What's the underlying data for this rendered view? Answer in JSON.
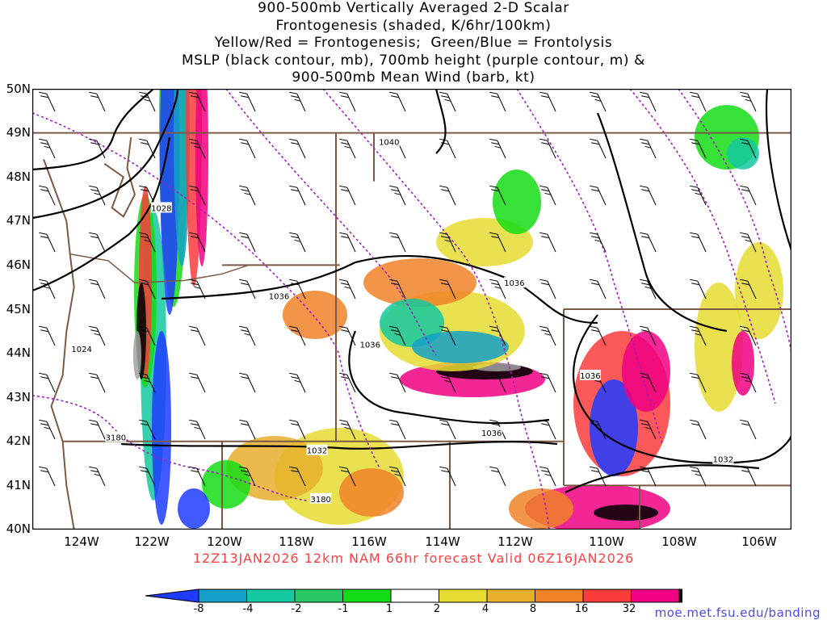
{
  "title": {
    "lines": [
      "900-500mb Vertically Averaged 2-D Scalar",
      "Frontogenesis (shaded, K/6hr/100km)",
      "Yellow/Red = Frontogenesis;  Green/Blue = Frontolysis",
      "MSLP (black contour, mb), 700mb height (purple contour, m) &",
      "900-500mb Mean Wind (barb, kt)"
    ]
  },
  "axes": {
    "lat_labels": [
      "50N",
      "49N",
      "48N",
      "47N",
      "46N",
      "45N",
      "44N",
      "43N",
      "42N",
      "41N",
      "40N"
    ],
    "lon_labels": [
      "124W",
      "122W",
      "120W",
      "118W",
      "116W",
      "114W",
      "112W",
      "110W",
      "108W",
      "106W"
    ],
    "lat_range": [
      40,
      50
    ],
    "lon_range": [
      -125,
      -105
    ]
  },
  "contour_labels": [
    {
      "text": "1040",
      "lon": -115.6,
      "lat": 48.8
    },
    {
      "text": "1028",
      "lon": -121.6,
      "lat": 47.3
    },
    {
      "text": "1036",
      "lon": -118.5,
      "lat": 45.3
    },
    {
      "text": "1036",
      "lon": -112.3,
      "lat": 45.6
    },
    {
      "text": "1036",
      "lon": -116.1,
      "lat": 44.2
    },
    {
      "text": "1024",
      "lon": -123.7,
      "lat": 44.1
    },
    {
      "text": "1036",
      "lon": -110.3,
      "lat": 43.5
    },
    {
      "text": "1036",
      "lon": -112.9,
      "lat": 42.2
    },
    {
      "text": "3180",
      "lon": -122.8,
      "lat": 42.1
    },
    {
      "text": "1032",
      "lon": -117.5,
      "lat": 41.8
    },
    {
      "text": "3180",
      "lon": -117.4,
      "lat": 40.7
    },
    {
      "text": "1032",
      "lon": -106.8,
      "lat": 41.6
    }
  ],
  "subtitle": "12Z13JAN2026 12km NAM 66hr forecast Valid 06Z16JAN2026",
  "colorbar": {
    "colors": [
      "#1e3cff",
      "#14a0c8",
      "#14c8a0",
      "#28c864",
      "#14dc14",
      "#ffffff",
      "#e6dc32",
      "#e6af2d",
      "#f08228",
      "#fa3c3c",
      "#f00082",
      "#000000",
      "#a0a0a0"
    ],
    "labels": [
      "-8",
      "-4",
      "-2",
      "-1",
      "1",
      "2",
      "4",
      "8",
      "16",
      "32"
    ]
  },
  "credit": "moe.met.fsu.edu/banding",
  "colors": {
    "state_borders": "#7a5a45",
    "mslp_contours": "#000000",
    "height_contours": "#a020c0",
    "subtitle": "#ff4040",
    "credit": "#4a4aee"
  }
}
